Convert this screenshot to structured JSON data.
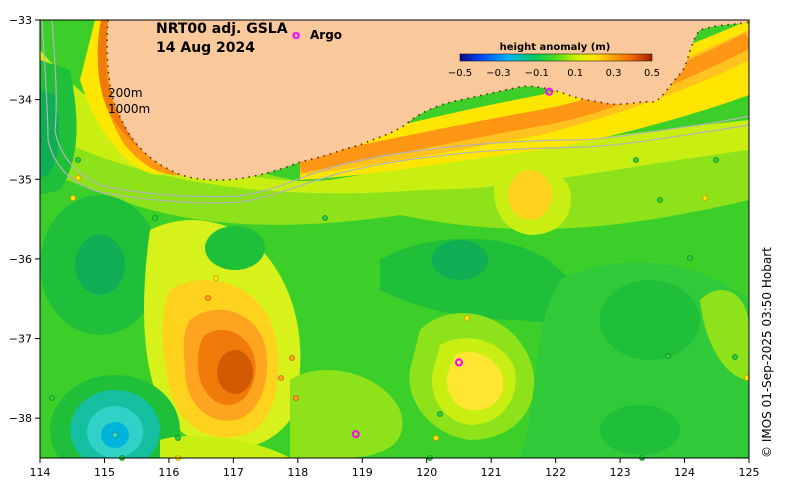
{
  "title": "NRT00 adj. GSLA",
  "date": "14 Aug 2024",
  "legend": {
    "argo_marker": "o",
    "argo_label": "Argo"
  },
  "isobaths": [
    "200m",
    "1000m"
  ],
  "colorbar": {
    "title": "height anomaly (m)",
    "tick_labels": [
      "−0.5",
      "−0.3",
      "−0.1",
      "0.1",
      "0.3",
      "0.5"
    ],
    "range": [
      -0.5,
      0.5
    ]
  },
  "axes": {
    "x_ticks": [
      "114",
      "115",
      "116",
      "117",
      "118",
      "119",
      "120",
      "121",
      "122",
      "123",
      "124",
      "125"
    ],
    "y_ticks": [
      "−33",
      "−34",
      "−35",
      "−36",
      "−37",
      "−38"
    ],
    "lon_range": [
      114,
      125
    ],
    "lat_range": [
      -38.5,
      -33
    ]
  },
  "credit": "© IMOS 01-Sep-2025 03:50 Hobart",
  "colors": {
    "land": "#f9c89b",
    "argo": "#ff00ff",
    "isobath": "#b4b4b4"
  },
  "argo_floats": [
    {
      "lon": 120.5,
      "lat": -37.3
    },
    {
      "lon": 118.9,
      "lat": -38.2
    },
    {
      "lon": 121.9,
      "lat": -33.9
    }
  ]
}
